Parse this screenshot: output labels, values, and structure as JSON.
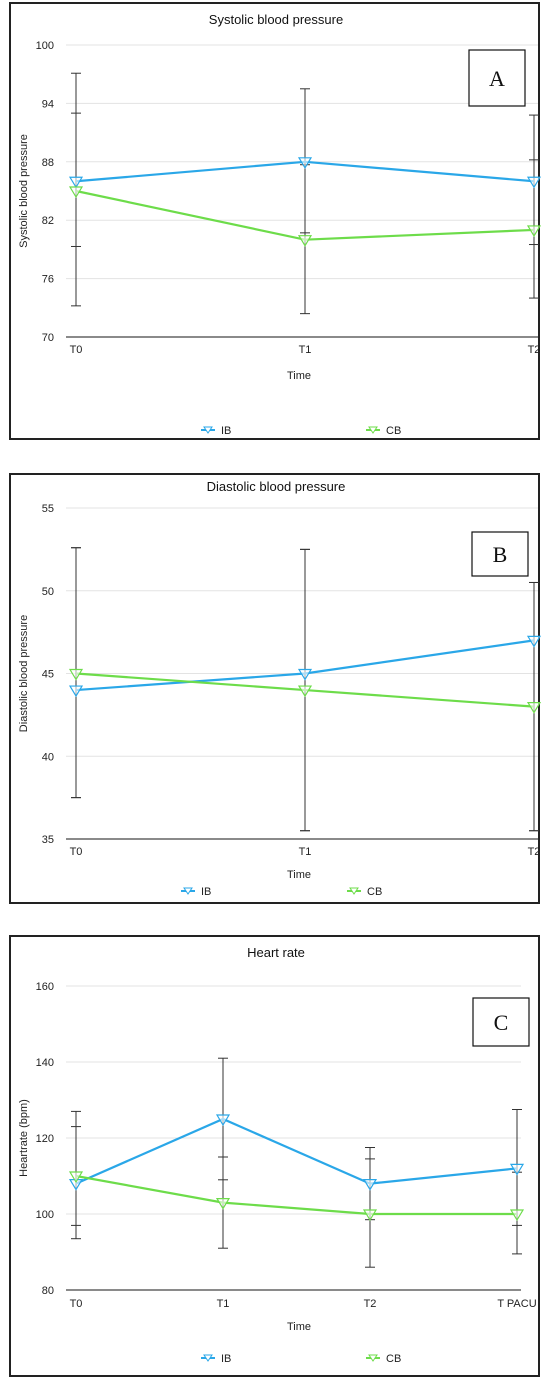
{
  "chart_data": [
    {
      "type": "line",
      "panel_letter": "A",
      "title": "Systolic blood pressure",
      "xlabel": "Time",
      "ylabel": "Systolic blood pressure",
      "categories": [
        "T0",
        "T1",
        "T2"
      ],
      "ylim": [
        70,
        100
      ],
      "yticks": [
        70,
        76,
        82,
        88,
        94,
        100
      ],
      "grid": true,
      "legend": "bottom",
      "series": [
        {
          "name": "IB",
          "color": "#2aa7e8",
          "values": [
            86,
            88,
            86
          ],
          "err_low": [
            73.2,
            80.7,
            79.5
          ],
          "err_high": [
            97.1,
            95.5,
            92.8
          ]
        },
        {
          "name": "CB",
          "color": "#6ddc4a",
          "values": [
            85,
            80,
            81
          ],
          "err_low": [
            79.3,
            72.4,
            74
          ],
          "err_high": [
            93,
            87.7,
            88.2
          ]
        }
      ]
    },
    {
      "type": "line",
      "panel_letter": "B",
      "title": "Diastolic blood pressure",
      "xlabel": "Time",
      "ylabel": "Diastolic blood pressure",
      "categories": [
        "T0",
        "T1",
        "T2"
      ],
      "ylim": [
        35,
        55
      ],
      "yticks": [
        35,
        40,
        45,
        50,
        55
      ],
      "grid": true,
      "legend": "bottom",
      "series": [
        {
          "name": "IB",
          "color": "#2aa7e8",
          "values": [
            44,
            45,
            47
          ],
          "err_low": [
            37.5,
            35.5,
            35.5
          ],
          "err_high": [
            52.6,
            52.5,
            50.5
          ]
        },
        {
          "name": "CB",
          "color": "#6ddc4a",
          "values": [
            45,
            44,
            43
          ],
          "err_low": [
            37.5,
            35.5,
            35.5
          ],
          "err_high": [
            52.6,
            52.5,
            50.5
          ]
        }
      ]
    },
    {
      "type": "line",
      "panel_letter": "C",
      "title": "Heart rate",
      "xlabel": "Time",
      "ylabel": "Heartrate (bpm)",
      "categories": [
        "T0",
        "T1",
        "T2",
        "T PACU"
      ],
      "ylim": [
        80,
        160
      ],
      "yticks": [
        80,
        100,
        120,
        140,
        160
      ],
      "grid": true,
      "legend": "bottom",
      "series": [
        {
          "name": "IB",
          "color": "#2aa7e8",
          "values": [
            108,
            125,
            108,
            112
          ],
          "err_low": [
            93.5,
            109,
            98.5,
            97
          ],
          "err_high": [
            127,
            141,
            117.5,
            127.5
          ]
        },
        {
          "name": "CB",
          "color": "#6ddc4a",
          "values": [
            110,
            103,
            100,
            100
          ],
          "err_low": [
            97,
            91,
            86,
            89.5
          ],
          "err_high": [
            123,
            115,
            114.5,
            111
          ]
        }
      ]
    }
  ]
}
